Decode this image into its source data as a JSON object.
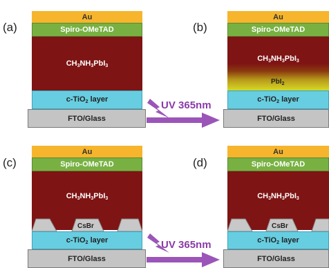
{
  "panels": {
    "a": {
      "label": "(a)"
    },
    "b": {
      "label": "(b)"
    },
    "c": {
      "label": "(c)"
    },
    "d": {
      "label": "(d)"
    }
  },
  "layers": {
    "au": "Au",
    "spiro": "Spiro-OMeTAD",
    "perovskite": {
      "base": "CH",
      "s1": "3",
      "mid": "NH",
      "s2": "3",
      "end": "PbI",
      "s3": "3"
    },
    "tio2": {
      "base": "c-TiO",
      "sub": "2",
      "rest": " layer"
    },
    "fto": "FTO/Glass",
    "pbi2": {
      "base": "PbI",
      "sub": "2"
    },
    "csbr": "CsBr"
  },
  "uv": {
    "label": "UV 365nm"
  },
  "colors": {
    "au": "#f6b52c",
    "spiro": "#78b142",
    "perovskite": "#7e1414",
    "tio2": "#67cde0",
    "fto": "#c4c4c4",
    "uv": "#8b3aa8",
    "arrow": "#9b55b8"
  }
}
